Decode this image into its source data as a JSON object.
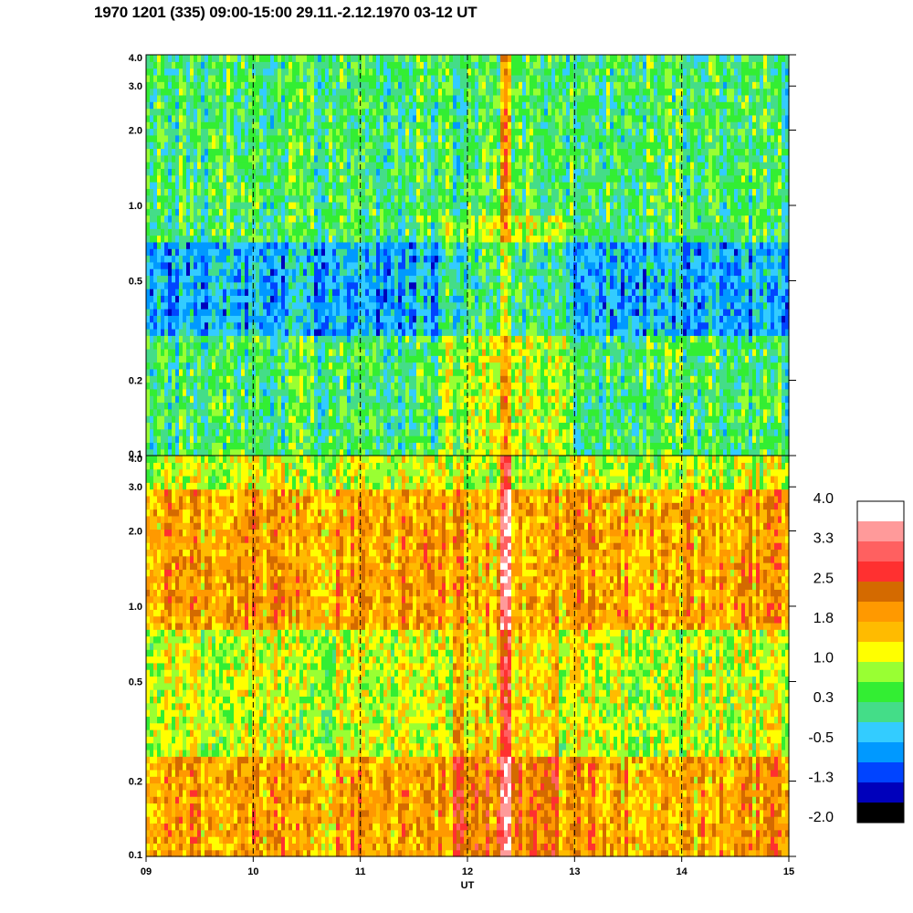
{
  "title": "1970 1201 (335) 09:00-15:00 29.11.-2.12.1970  03-12 UT",
  "chart_data": {
    "type": "heatmap",
    "xlabel": "UT",
    "x_ticks": [
      "09",
      "10",
      "11",
      "12",
      "13",
      "14",
      "15"
    ],
    "x_values": [
      9,
      10,
      11,
      12,
      13,
      14,
      15
    ],
    "xlim": [
      9,
      15
    ],
    "dashed_vlines_at": [
      10,
      11,
      12,
      13,
      14
    ],
    "panels": [
      {
        "name": "upper",
        "y_scale": "log",
        "ylim": [
          0.1,
          4.0
        ],
        "y_ticks": [
          "0.1",
          "0.2",
          "0.5",
          "1.0",
          "2.0",
          "3.0",
          "4.0"
        ],
        "y_values": [
          0.1,
          0.2,
          0.5,
          1.0,
          2.0,
          3.0,
          4.0
        ],
        "dominant_level_by_band": [
          {
            "y_from": 0.1,
            "y_to": 0.3,
            "level": 0.3
          },
          {
            "y_from": 0.3,
            "y_to": 0.7,
            "level": -0.5
          },
          {
            "y_from": 0.7,
            "y_to": 4.0,
            "level": 0.3
          }
        ],
        "bright_column_at": 12.35
      },
      {
        "name": "lower",
        "y_scale": "log",
        "ylim": [
          0.1,
          4.0
        ],
        "y_ticks": [
          "0.1",
          "0.2",
          "0.5",
          "1.0",
          "2.0",
          "3.0",
          "4.0"
        ],
        "y_values": [
          0.1,
          0.2,
          0.5,
          1.0,
          2.0,
          3.0,
          4.0
        ],
        "dominant_level_by_band": [
          {
            "y_from": 0.1,
            "y_to": 0.25,
            "level": 1.8
          },
          {
            "y_from": 0.25,
            "y_to": 0.8,
            "level": 1.0
          },
          {
            "y_from": 0.8,
            "y_to": 1.1,
            "level": 1.8
          },
          {
            "y_from": 1.1,
            "y_to": 3.0,
            "level": 1.8
          },
          {
            "y_from": 3.0,
            "y_to": 4.0,
            "level": 1.0
          }
        ],
        "bright_column_at": 12.35
      }
    ],
    "colorbar": {
      "labels": [
        "4.0",
        "3.3",
        "2.5",
        "1.8",
        "1.0",
        "0.3",
        "-0.5",
        "-1.3",
        "-2.0"
      ],
      "colors_top_to_bottom": [
        "#ffffff",
        "#ff9a9a",
        "#ff6060",
        "#ff3030",
        "#d46a00",
        "#ff9900",
        "#ffbb00",
        "#ffff00",
        "#99ff33",
        "#33ee33",
        "#44dd88",
        "#33ccff",
        "#0099ff",
        "#0044ff",
        "#0000bb",
        "#000000"
      ]
    }
  }
}
